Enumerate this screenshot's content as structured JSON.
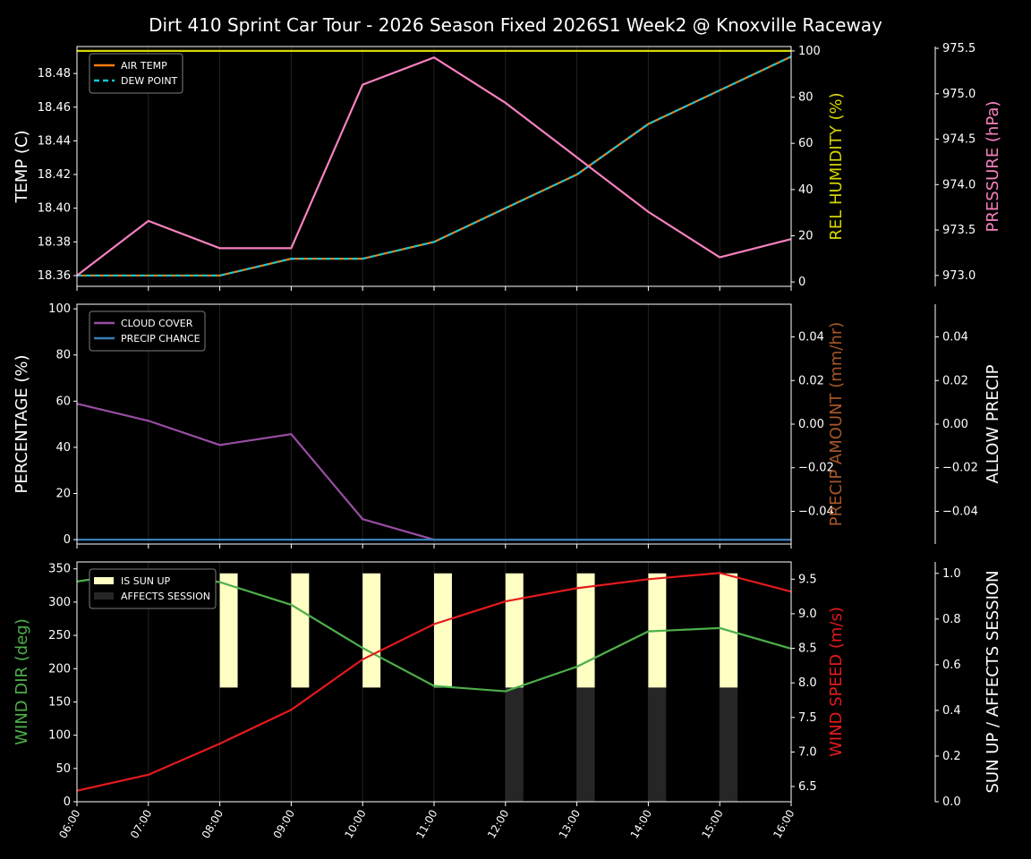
{
  "title": "Dirt 410 Sprint Car Tour - 2026 Season Fixed 2026S1 Week2 @ Knoxville Raceway",
  "chart_data": [
    {
      "type": "line",
      "x": [
        "06:00",
        "07:00",
        "08:00",
        "09:00",
        "10:00",
        "11:00",
        "12:00",
        "13:00",
        "14:00",
        "15:00",
        "16:00"
      ],
      "grid": "vertical",
      "legend": "top-left",
      "axes": [
        {
          "side": "left",
          "label": "TEMP (C)",
          "color": "#ffffff",
          "ylim": [
            18.3536,
            18.496
          ],
          "ticks": [
            "18.36",
            "18.38",
            "18.40",
            "18.42",
            "18.44",
            "18.46",
            "18.48"
          ]
        },
        {
          "side": "right",
          "label": "REL HUMIDITY (%)",
          "color": "#d6d600",
          "ylim": [
            -1.9,
            101.9
          ],
          "ticks": [
            "0",
            "20",
            "40",
            "60",
            "80",
            "100"
          ]
        },
        {
          "side": "right-outer",
          "label": "PRESSURE (hPa)",
          "color": "#f781bf",
          "ylim": [
            972.88,
            975.52
          ],
          "ticks": [
            "973.0",
            "973.5",
            "974.0",
            "974.5",
            "975.0",
            "975.5"
          ]
        }
      ],
      "series": [
        {
          "name": "AIR TEMP",
          "axis": 0,
          "color": "#ff7f0e",
          "style": "solid",
          "legend": true,
          "values": [
            18.36,
            18.36,
            18.36,
            18.37,
            18.37,
            18.38,
            18.4,
            18.42,
            18.45,
            18.47,
            18.49
          ]
        },
        {
          "name": "DEW POINT",
          "axis": 0,
          "color": "#17c5cf",
          "style": "dashed",
          "legend": true,
          "values": [
            18.36,
            18.36,
            18.36,
            18.37,
            18.37,
            18.38,
            18.4,
            18.42,
            18.45,
            18.47,
            18.49
          ]
        },
        {
          "axis": 1,
          "color": "#d6d600",
          "style": "solid",
          "legend": false,
          "values": [
            100,
            100,
            100,
            100,
            100,
            100,
            100,
            100,
            100,
            100,
            100
          ]
        },
        {
          "axis": 2,
          "color": "#f781bf",
          "style": "solid",
          "legend": false,
          "values": [
            973.0,
            973.6,
            973.3,
            973.3,
            975.1,
            975.4,
            974.9,
            974.3,
            973.7,
            973.2,
            973.4
          ]
        }
      ]
    },
    {
      "type": "line",
      "x": [
        "06:00",
        "07:00",
        "08:00",
        "09:00",
        "10:00",
        "11:00",
        "12:00",
        "13:00",
        "14:00",
        "15:00",
        "16:00"
      ],
      "grid": "vertical",
      "legend": "top-left",
      "axes": [
        {
          "side": "left",
          "label": "PERCENTAGE (%)",
          "color": "#ffffff",
          "ylim": [
            -1.9,
            102
          ],
          "ticks": [
            "0",
            "20",
            "40",
            "60",
            "80",
            "100"
          ]
        },
        {
          "side": "right",
          "label": "PRECIP AMOUNT (mm/hr)",
          "color": "#a65628",
          "ylim": [
            -0.055,
            0.055
          ],
          "ticks": [
            "−0.04",
            "−0.02",
            "0.00",
            "0.02",
            "0.04"
          ]
        },
        {
          "side": "right-outer",
          "label": "ALLOW PRECIP",
          "color": "#ffffff",
          "ylim": [
            -0.055,
            0.055
          ],
          "ticks": [
            "−0.04",
            "−0.02",
            "0.00",
            "0.02",
            "0.04"
          ]
        }
      ],
      "series": [
        {
          "name": "CLOUD COVER",
          "axis": 0,
          "color": "#984ea3",
          "style": "solid",
          "legend": true,
          "values": [
            58.9,
            51.5,
            41,
            45.7,
            8.9,
            0,
            0,
            0,
            0,
            0,
            0
          ]
        },
        {
          "name": "PRECIP CHANCE",
          "axis": 0,
          "color": "#377eb8",
          "style": "solid",
          "legend": true,
          "values": [
            0,
            0,
            0,
            0,
            0,
            0,
            0,
            0,
            0,
            0,
            0
          ]
        }
      ]
    },
    {
      "type": "line",
      "x": [
        "06:00",
        "07:00",
        "08:00",
        "09:00",
        "10:00",
        "11:00",
        "12:00",
        "13:00",
        "14:00",
        "15:00",
        "16:00"
      ],
      "grid": "vertical",
      "legend": "top-left",
      "axes": [
        {
          "side": "left",
          "label": "WIND DIR (deg)",
          "color": "#4daf4a",
          "ylim": [
            0,
            360.4
          ],
          "ticks": [
            "0",
            "50",
            "100",
            "150",
            "200",
            "250",
            "300",
            "350"
          ]
        },
        {
          "side": "right",
          "label": "WIND SPEED (m/s)",
          "color": "#e41a1c",
          "ylim": [
            6.28,
            9.75
          ],
          "ticks": [
            "6.5",
            "7.0",
            "7.5",
            "8.0",
            "8.5",
            "9.0",
            "9.5"
          ]
        },
        {
          "side": "right-outer",
          "label": "SUN UP / AFFECTS SESSION",
          "color": "#ffffff",
          "ylim": [
            0,
            1.05
          ],
          "ticks": [
            "0.0",
            "0.2",
            "0.4",
            "0.6",
            "0.8",
            "1.0"
          ]
        }
      ],
      "bars": [
        {
          "name": "IS SUN UP",
          "axis": 2,
          "color": "#ffffc4",
          "values": [
            0,
            0,
            1,
            1,
            1,
            1,
            1,
            1,
            1,
            1,
            0
          ]
        },
        {
          "name": "AFFECTS SESSION",
          "axis": 2,
          "color": "#262626",
          "values": [
            0,
            0,
            0,
            0,
            0,
            0,
            1,
            1,
            1,
            1,
            0
          ]
        }
      ],
      "series": [
        {
          "axis": 0,
          "color": "#4daf4a",
          "style": "solid",
          "legend": false,
          "values": [
            331,
            347,
            330,
            296,
            231,
            174,
            166,
            203,
            256,
            261,
            230
          ]
        },
        {
          "axis": 1,
          "color": "#e41a1c",
          "style": "solid",
          "legend": false,
          "values": [
            6.44,
            6.67,
            7.12,
            7.61,
            8.34,
            8.85,
            9.18,
            9.37,
            9.5,
            9.59,
            9.32
          ]
        }
      ]
    }
  ]
}
